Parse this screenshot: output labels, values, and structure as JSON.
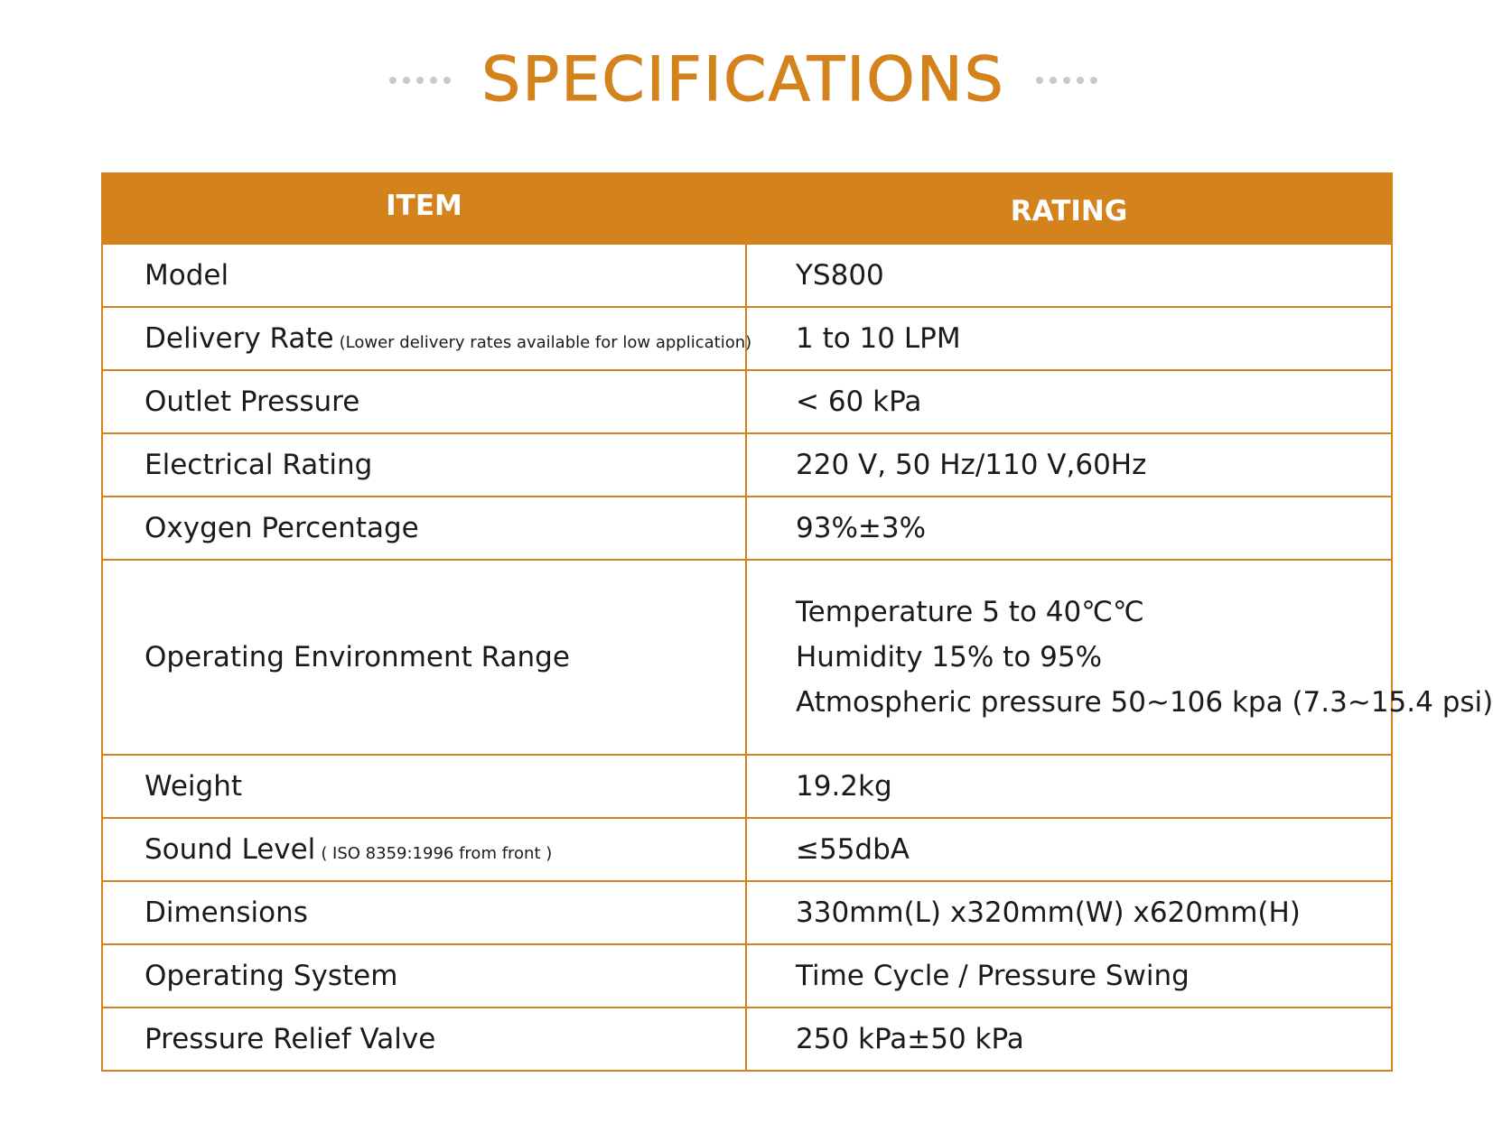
{
  "title": "SPECIFICATIONS",
  "table": {
    "header": {
      "item": "ITEM",
      "rating": "RATING"
    },
    "rows": [
      {
        "item": "Model",
        "note": "",
        "rating": " YS800"
      },
      {
        "item": "Delivery Rate",
        "note": "(Lower delivery rates available for low application)",
        "rating": "1 to 10 LPM"
      },
      {
        "item": "Outlet Pressure",
        "note": "",
        "rating": " < 60 kPa"
      },
      {
        "item": "Electrical Rating",
        "note": "",
        "rating": "220 V, 50 Hz/110 V,60Hz"
      },
      {
        "item": "Oxygen Percentage",
        "note": "",
        "rating": "93%±3%"
      },
      {
        "item": "Operating Environment Range",
        "note": "",
        "rating_lines": [
          "Temperature 5 to 40℃℃",
          "Humidity 15% to 95%",
          "Atmospheric pressure 50~106 kpa (7.3~15.4 psi)"
        ]
      },
      {
        "item": "Weight",
        "note": "",
        "rating": "19.2kg"
      },
      {
        "item": "Sound Level",
        "note": "( ISO 8359:1996 from front )",
        "rating": "≤55dbA"
      },
      {
        "item": "Dimensions",
        "note": "",
        "rating": "330mm(L) x320mm(W) x620mm(H)"
      },
      {
        "item": "Operating System",
        "note": "",
        "rating": "Time Cycle / Pressure Swing"
      },
      {
        "item": "Pressure Relief Valve",
        "note": "",
        "rating": "250 kPa±50 kPa"
      }
    ]
  },
  "colors": {
    "accent": "#d4821c",
    "dots": "#c9c9c9",
    "text": "#1a1a1a"
  }
}
